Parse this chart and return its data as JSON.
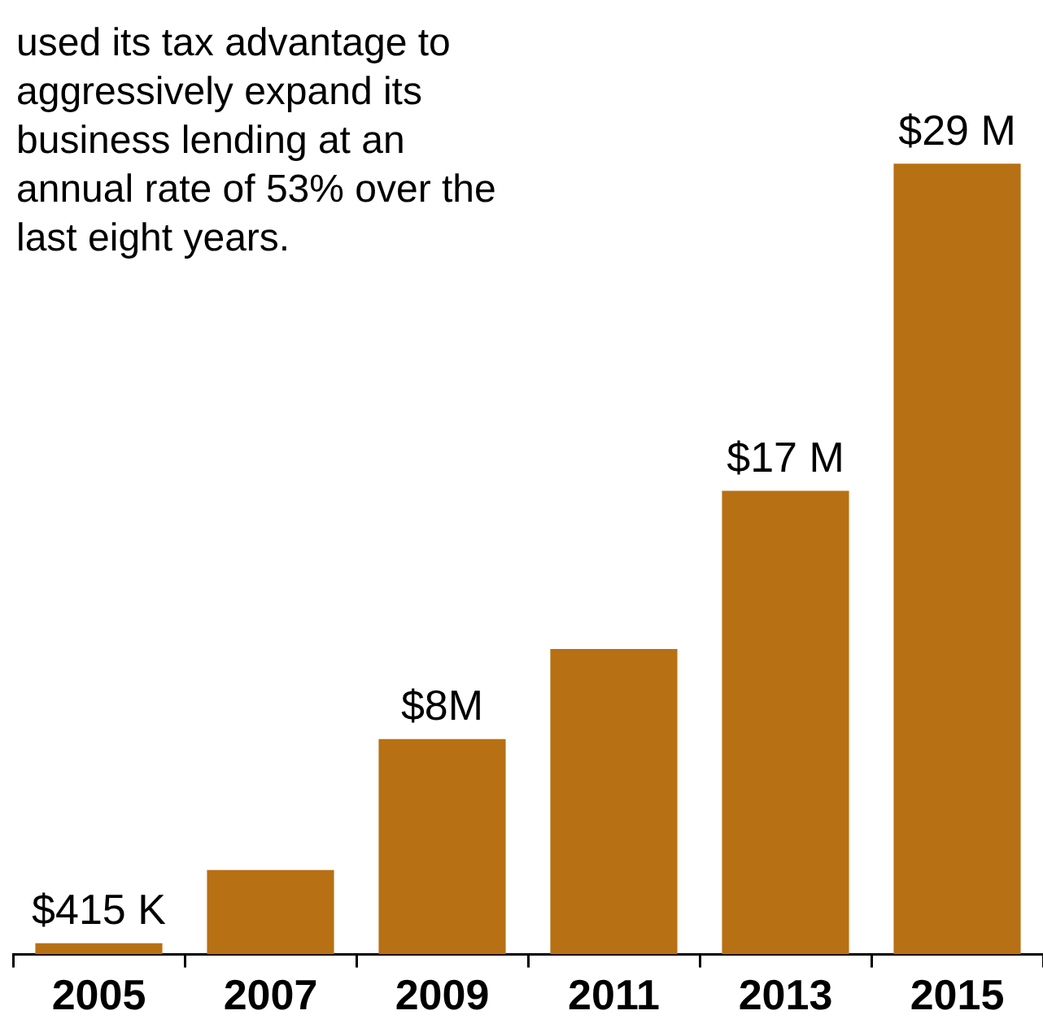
{
  "chart_data": {
    "type": "bar",
    "categories": [
      "2005",
      "2007",
      "2009",
      "2011",
      "2013",
      "2015"
    ],
    "values": [
      0.415,
      3.1,
      7.9,
      11.2,
      17,
      29
    ],
    "value_labels": [
      "$415 K",
      null,
      "$8M",
      null,
      "$17 M",
      "$29 M"
    ],
    "color": "#b87014",
    "annotations": [
      "used its tax advantage to aggressively expand its business lending at an annual rate of 53% over the last eight years."
    ]
  }
}
